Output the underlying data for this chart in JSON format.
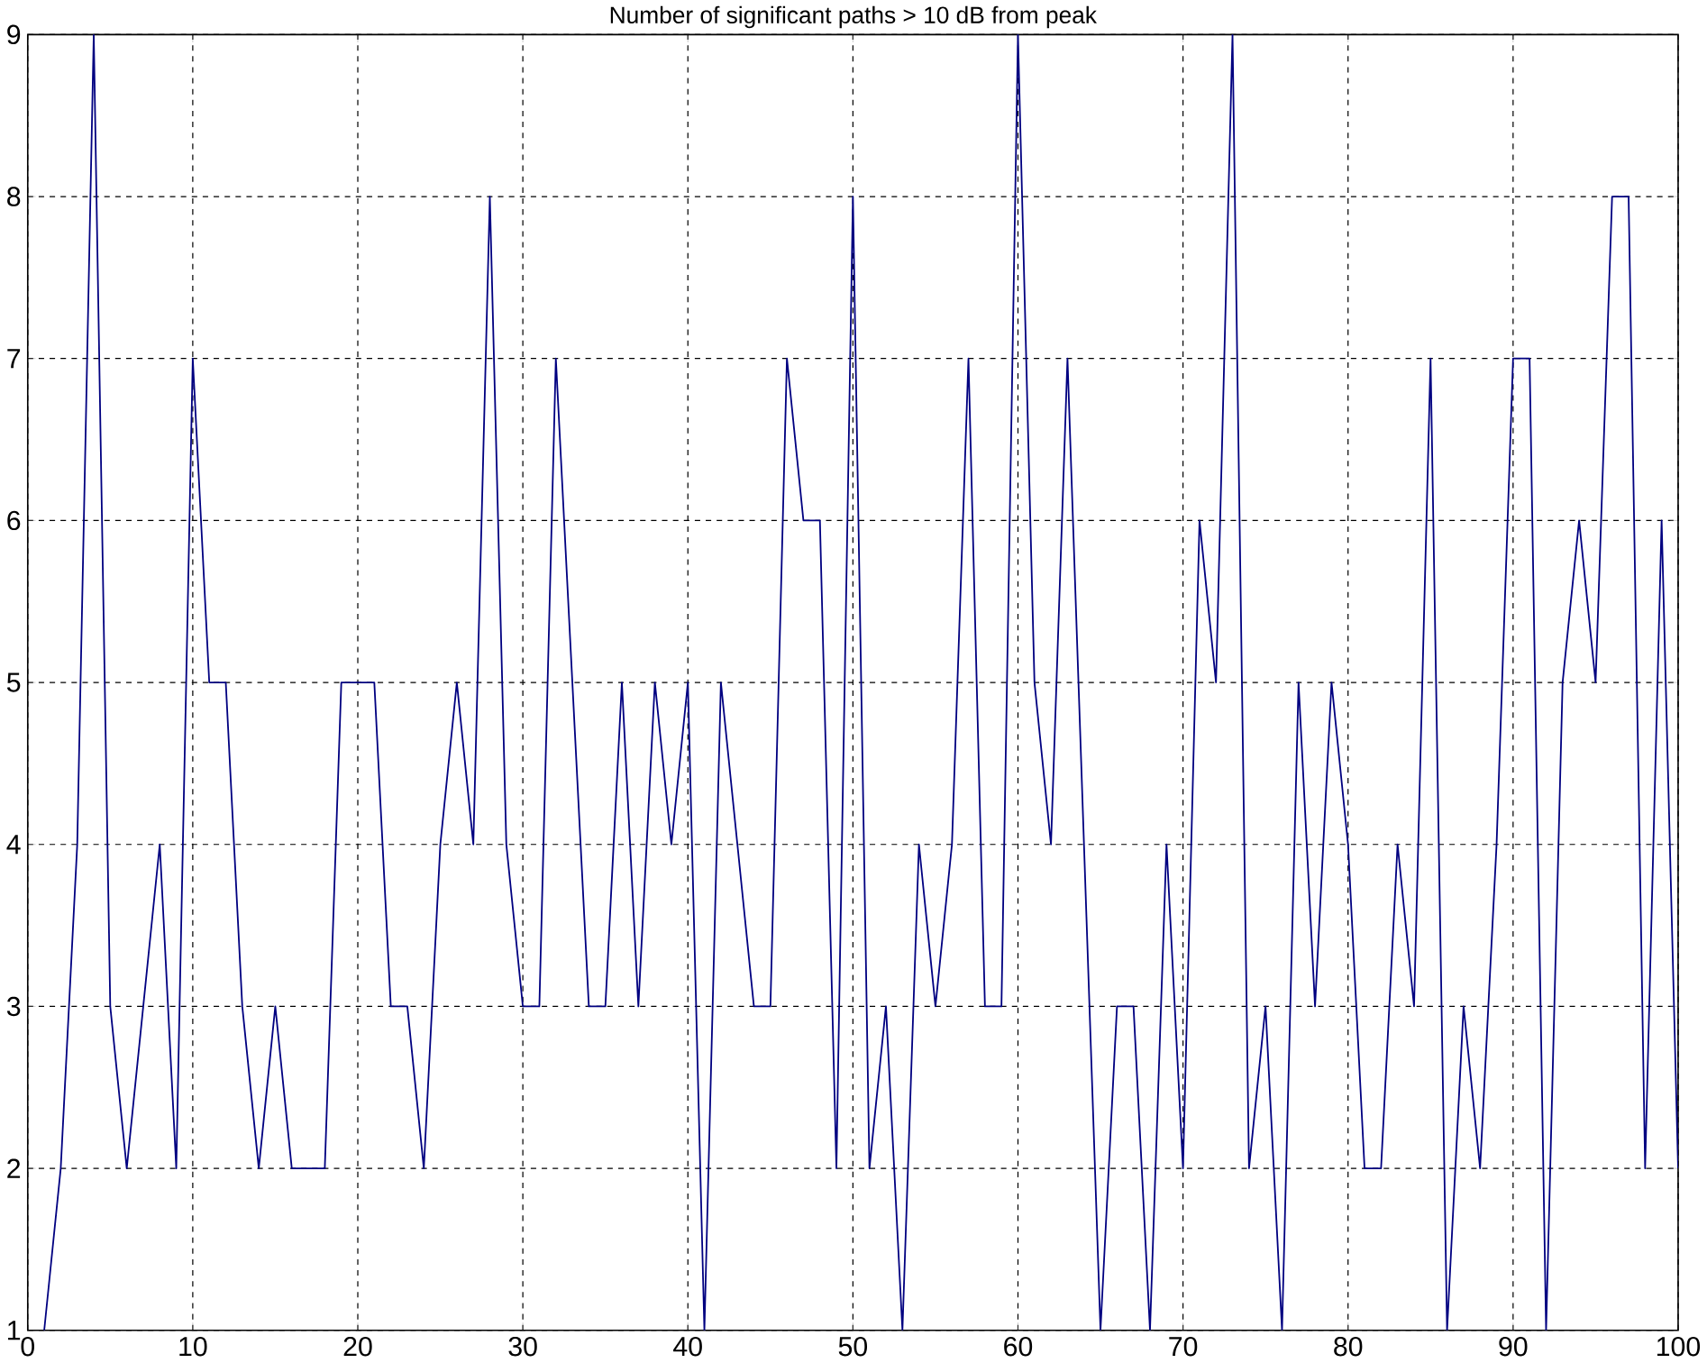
{
  "chart_data": {
    "type": "line",
    "title": "Number of significant paths > 10 dB from peak",
    "x": [
      1,
      2,
      3,
      4,
      5,
      6,
      7,
      8,
      9,
      10,
      11,
      12,
      13,
      14,
      15,
      16,
      17,
      18,
      19,
      20,
      21,
      22,
      23,
      24,
      25,
      26,
      27,
      28,
      29,
      30,
      31,
      32,
      33,
      34,
      35,
      36,
      37,
      38,
      39,
      40,
      41,
      42,
      43,
      44,
      45,
      46,
      47,
      48,
      49,
      50,
      51,
      52,
      53,
      54,
      55,
      56,
      57,
      58,
      59,
      60,
      61,
      62,
      63,
      64,
      65,
      66,
      67,
      68,
      69,
      70,
      71,
      72,
      73,
      74,
      75,
      76,
      77,
      78,
      79,
      80,
      81,
      82,
      83,
      84,
      85,
      86,
      87,
      88,
      89,
      90,
      91,
      92,
      93,
      94,
      95,
      96,
      97,
      98,
      99,
      100
    ],
    "series": [
      {
        "color": "#000080",
        "values": [
          1,
          2,
          4,
          9,
          3,
          2,
          3,
          4,
          2,
          7,
          5,
          5,
          3,
          2,
          3,
          2,
          2,
          2,
          5,
          5,
          5,
          3,
          3,
          2,
          4,
          5,
          4,
          8,
          4,
          3,
          3,
          7,
          5,
          3,
          3,
          5,
          3,
          5,
          4,
          5,
          1,
          5,
          4,
          3,
          3,
          7,
          6,
          6,
          2,
          8,
          2,
          3,
          1,
          4,
          3,
          4,
          7,
          3,
          3,
          9,
          5,
          4,
          7,
          4,
          1,
          3,
          3,
          1,
          4,
          2,
          6,
          5,
          9,
          2,
          3,
          1,
          5,
          3,
          5,
          4,
          2,
          2,
          4,
          3,
          7,
          1,
          3,
          2,
          4,
          7,
          7,
          1,
          5,
          6,
          5,
          8,
          8,
          2,
          6,
          2
        ]
      }
    ],
    "xlim": [
      0,
      100
    ],
    "ylim": [
      1,
      9
    ],
    "xticks": [
      0,
      10,
      20,
      30,
      40,
      50,
      60,
      70,
      80,
      90,
      100
    ],
    "yticks": [
      1,
      2,
      3,
      4,
      5,
      6,
      7,
      8,
      9
    ],
    "grid": true
  }
}
